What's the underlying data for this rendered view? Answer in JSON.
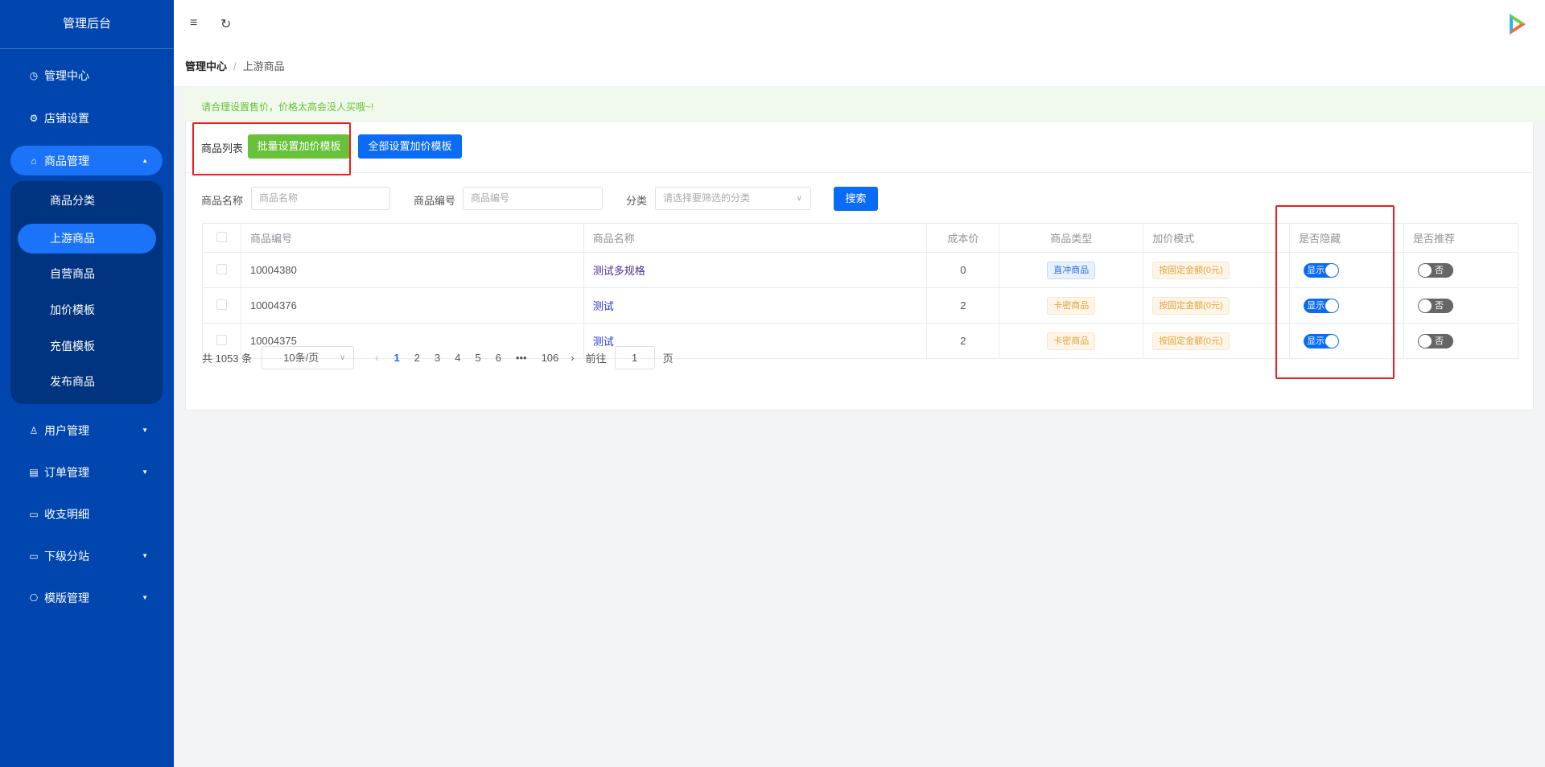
{
  "sidebar": {
    "brand": "管理后台",
    "items": [
      {
        "label": "管理中心",
        "icon": "dashboard-icon"
      },
      {
        "label": "店铺设置",
        "icon": "gear-icon"
      },
      {
        "label": "商品管理",
        "icon": "shopping-bag-icon",
        "expanded": true
      },
      {
        "label": "用户管理",
        "icon": "user-icon"
      },
      {
        "label": "订单管理",
        "icon": "document-icon"
      },
      {
        "label": "收支明细",
        "icon": "finance-icon"
      },
      {
        "label": "下级分站",
        "icon": "monitor-icon"
      },
      {
        "label": "模版管理",
        "icon": "template-icon"
      }
    ],
    "submenu": [
      "商品分类",
      "上游商品",
      "自营商品",
      "加价模板",
      "充值模板",
      "发布商品"
    ],
    "active_sub": "上游商品"
  },
  "header": {
    "menu_icon": "menu-icon",
    "refresh_icon": "refresh-icon"
  },
  "breadcrumb": {
    "root": "管理中心",
    "sep": "/",
    "current": "上游商品"
  },
  "alert": "请合理设置售价，价格太高会没人买哦~!",
  "card": {
    "title": "商品列表",
    "batch_btn": "批量设置加价模板",
    "all_btn": "全部设置加价模板"
  },
  "filters": {
    "name_label": "商品名称",
    "name_placeholder": "商品名称",
    "code_label": "商品编号",
    "code_placeholder": "商品编号",
    "cat_label": "分类",
    "cat_placeholder": "请选择要筛选的分类",
    "search": "搜索"
  },
  "table": {
    "headers": [
      "商品编号",
      "商品名称",
      "成本价",
      "商品类型",
      "加价模式",
      "是否隐藏",
      "是否推荐"
    ],
    "rows": [
      {
        "code": "10004380",
        "name": "测试多规格",
        "cost": "0",
        "type": "直冲商品",
        "mode": "按固定金额(0元)",
        "hidden": "显示",
        "recommend": "否"
      },
      {
        "code": "10004376",
        "name": "测试",
        "cost": "2",
        "type": "卡密商品",
        "mode": "按固定金额(0元)",
        "hidden": "显示",
        "recommend": "否"
      },
      {
        "code": "10004375",
        "name": "测试",
        "cost": "2",
        "type": "卡密商品",
        "mode": "按固定金额(0元)",
        "hidden": "显示",
        "recommend": "否"
      }
    ]
  },
  "pager": {
    "total": "共 1053 条",
    "size": "10条/页",
    "pages": [
      "1",
      "2",
      "3",
      "4",
      "5",
      "6",
      "•••",
      "106"
    ],
    "current": "1",
    "goto": "前往",
    "page_value": "1",
    "page_unit": "页"
  },
  "colors": {
    "sidebar": "#0046ae",
    "accent": "#1a73f8",
    "green": "#67c23a",
    "highlight": "#f01c1c"
  }
}
